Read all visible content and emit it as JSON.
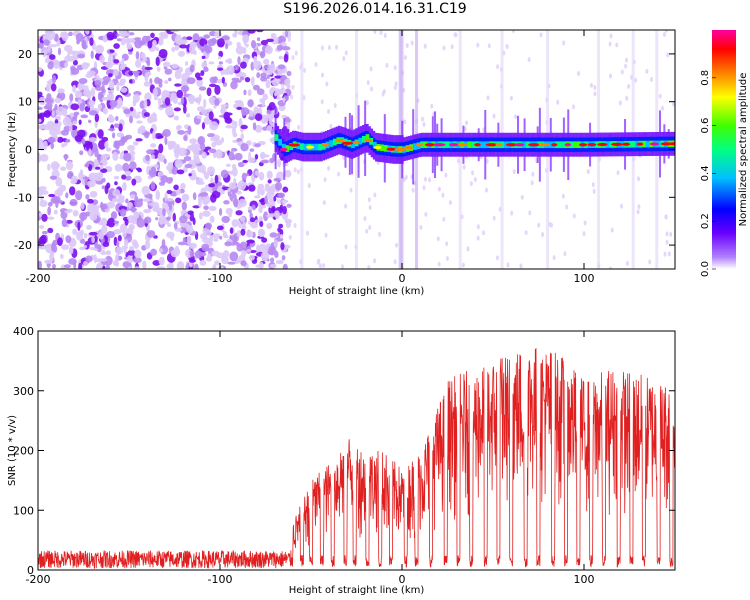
{
  "title": "S196.2026.014.16.31.C19",
  "chart_data": [
    {
      "type": "heatmap",
      "name": "spectrogram",
      "xlabel": "Height of straight line (km)",
      "ylabel": "Frequency (Hz)",
      "xlim": [
        -200,
        150
      ],
      "ylim": [
        -25,
        25
      ],
      "xticks": [
        -200,
        -100,
        0,
        100
      ],
      "xtick_labels": [
        "-200",
        "-100",
        "0",
        "100"
      ],
      "yticks": [
        -20,
        -10,
        0,
        10,
        20
      ],
      "ytick_labels": [
        "-20",
        "-10",
        "0",
        "10",
        "20"
      ],
      "colorbar": {
        "label": "Normalized spectral amplitude",
        "range": [
          0,
          1
        ],
        "ticks": [
          0.0,
          0.2,
          0.4,
          0.6,
          0.8
        ],
        "tick_labels": [
          "0.0",
          "0.2",
          "0.4",
          "0.6",
          "0.8"
        ],
        "colors": [
          "#ffffff",
          "#b080ff",
          "#6a00ff",
          "#0000ff",
          "#00c0ff",
          "#00ff80",
          "#40ff00",
          "#ffff00",
          "#ff8000",
          "#ff0000",
          "#ff00a0"
        ]
      },
      "noise_region_end_km": -70,
      "signal_track": [
        {
          "x": -70,
          "f": 2.5
        },
        {
          "x": -65,
          "f": 0.0
        },
        {
          "x": -60,
          "f": 1.0
        },
        {
          "x": -55,
          "f": 0.5
        },
        {
          "x": -45,
          "f": 0.5
        },
        {
          "x": -35,
          "f": 2.0
        },
        {
          "x": -28,
          "f": 1.0
        },
        {
          "x": -20,
          "f": 2.5
        },
        {
          "x": -15,
          "f": 0.5
        },
        {
          "x": -5,
          "f": 0.0
        },
        {
          "x": 0,
          "f": 0.0
        },
        {
          "x": 10,
          "f": 1.0
        },
        {
          "x": 50,
          "f": 1.0
        },
        {
          "x": 100,
          "f": 1.0
        },
        {
          "x": 150,
          "f": 1.2
        }
      ]
    },
    {
      "type": "line",
      "name": "snr",
      "xlabel": "Height of straight line (km)",
      "ylabel": "SNR (10 * v/v)",
      "xlim": [
        -200,
        150
      ],
      "ylim": [
        0,
        400
      ],
      "xticks": [
        -200,
        -100,
        0,
        100
      ],
      "xtick_labels": [
        "-200",
        "-100",
        "0",
        "100"
      ],
      "yticks": [
        0,
        100,
        200,
        300,
        400
      ],
      "ytick_labels": [
        "0",
        "100",
        "200",
        "300",
        "400"
      ],
      "line_color": "#e02020",
      "noise_floor": {
        "x_start": -200,
        "x_end": -60,
        "mean": 15,
        "max": 35
      },
      "envelope": [
        {
          "x": -60,
          "y": 80
        },
        {
          "x": -50,
          "y": 150
        },
        {
          "x": -40,
          "y": 180
        },
        {
          "x": -30,
          "y": 230
        },
        {
          "x": -20,
          "y": 200
        },
        {
          "x": -10,
          "y": 200
        },
        {
          "x": 0,
          "y": 170
        },
        {
          "x": 10,
          "y": 200
        },
        {
          "x": 18,
          "y": 260
        },
        {
          "x": 25,
          "y": 320
        },
        {
          "x": 40,
          "y": 340
        },
        {
          "x": 55,
          "y": 360
        },
        {
          "x": 70,
          "y": 380
        },
        {
          "x": 85,
          "y": 370
        },
        {
          "x": 100,
          "y": 320
        },
        {
          "x": 115,
          "y": 340
        },
        {
          "x": 130,
          "y": 330
        },
        {
          "x": 150,
          "y": 310
        }
      ],
      "dip_positions_km": [
        -55,
        -50,
        -44,
        -38,
        -31,
        -26,
        -19,
        -12,
        -6,
        2,
        8,
        16,
        24,
        31,
        38,
        46,
        53,
        60,
        68,
        75,
        83,
        90,
        97,
        104,
        111,
        119,
        126,
        133,
        141,
        148
      ]
    }
  ]
}
